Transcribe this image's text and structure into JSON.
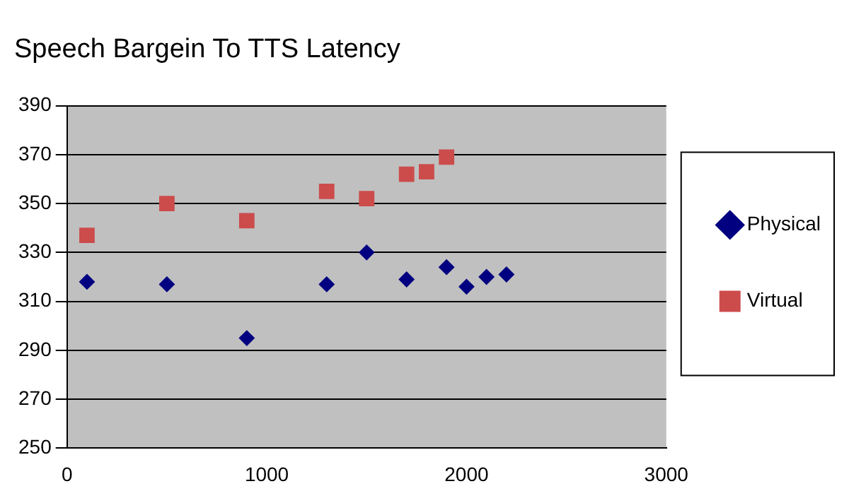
{
  "chart_data": {
    "type": "scatter",
    "title": "Speech Bargein To TTS Latency",
    "xlim": [
      0,
      3000
    ],
    "xticks": [
      0,
      1000,
      2000,
      3000
    ],
    "ylim": [
      250,
      390
    ],
    "yticks": [
      250,
      270,
      290,
      310,
      330,
      350,
      370,
      390
    ],
    "grid": "y",
    "legend": "right",
    "series": [
      {
        "name": "Physical",
        "color": "#000080",
        "marker": "diamond",
        "x": [
          100,
          500,
          900,
          1300,
          1500,
          1700,
          1900,
          2000,
          2100,
          2200
        ],
        "values": [
          318,
          317,
          295,
          317,
          330,
          319,
          324,
          316,
          320,
          321
        ]
      },
      {
        "name": "Virtual",
        "color": "#cc4c4c",
        "marker": "square",
        "x": [
          100,
          500,
          900,
          1300,
          1500,
          1700,
          1800,
          1900
        ],
        "values": [
          337,
          350,
          343,
          355,
          352,
          362,
          363,
          369
        ]
      }
    ]
  }
}
